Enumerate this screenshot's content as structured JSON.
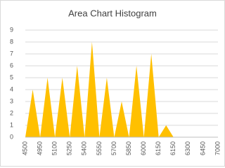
{
  "chart_data": {
    "type": "area",
    "title": "Area Chart Histogram",
    "categories": [
      "4500",
      null,
      "4950",
      null,
      "5100",
      null,
      "5250",
      null,
      "5400",
      null,
      "5550",
      null,
      "5700",
      null,
      "5850",
      null,
      "6000",
      null,
      "6150",
      null,
      "6150",
      null,
      "6300",
      null,
      "6450",
      null,
      "7000"
    ],
    "values": [
      0,
      4,
      0,
      5,
      0,
      5,
      0,
      6,
      0,
      8,
      0,
      5,
      0,
      3,
      0,
      6,
      0,
      7,
      0,
      1,
      0,
      0,
      0,
      0,
      0,
      0,
      0
    ],
    "color": "#ffc000",
    "ylim": [
      0,
      9
    ],
    "yticks": [
      0,
      1,
      2,
      3,
      4,
      5,
      6,
      7,
      8,
      9
    ],
    "grid": true
  }
}
